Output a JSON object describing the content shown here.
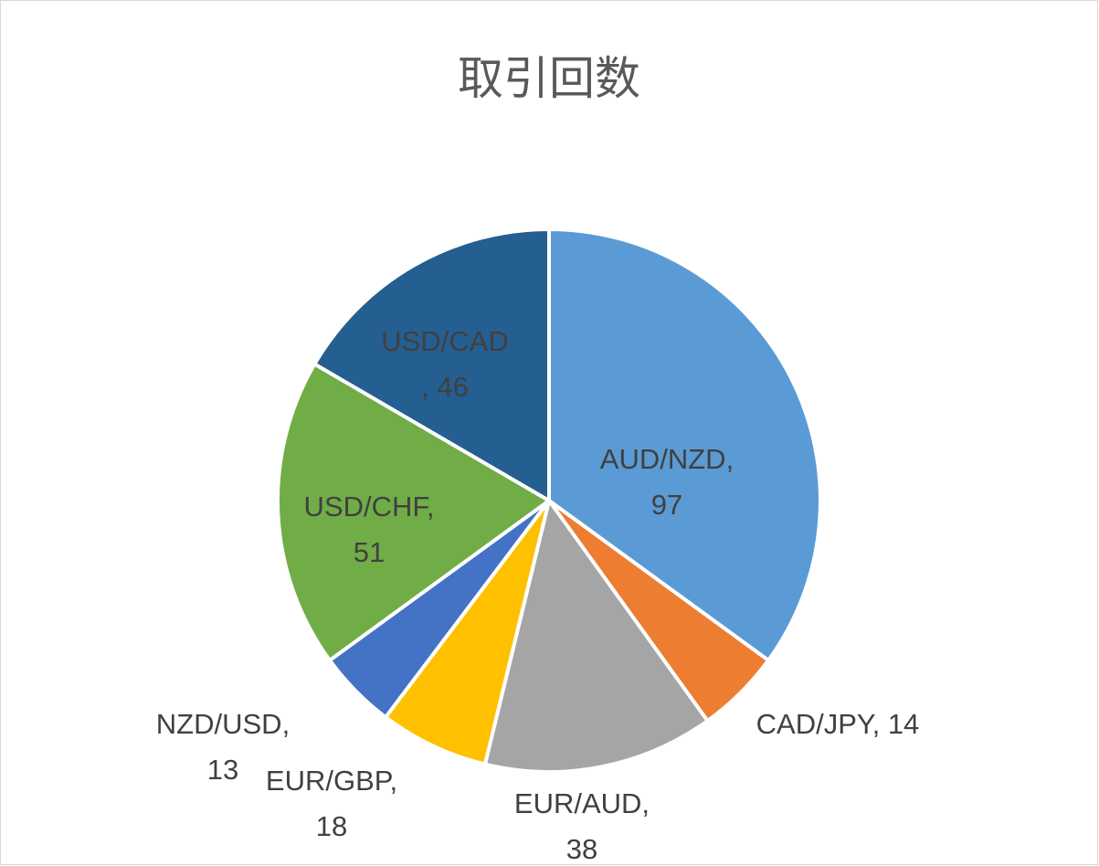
{
  "chart_data": {
    "type": "pie",
    "title": "取引回数",
    "values": [
      97,
      14,
      38,
      18,
      13,
      51,
      46
    ],
    "labels": [
      [
        "AUD/NZD,",
        "97"
      ],
      [
        "CAD/JPY, 14"
      ],
      [
        "EUR/AUD,",
        "38"
      ],
      [
        "EUR/GBP,",
        "18"
      ],
      [
        "NZD/USD,",
        "13"
      ],
      [
        "USD/CHF,",
        "51"
      ],
      [
        "USD/CAD",
        ", 46"
      ]
    ],
    "colors": [
      "#5b9bd5",
      "#ed7d31",
      "#a5a5a5",
      "#ffc000",
      "#4472c4",
      "#70ad47",
      "#255e91"
    ]
  }
}
